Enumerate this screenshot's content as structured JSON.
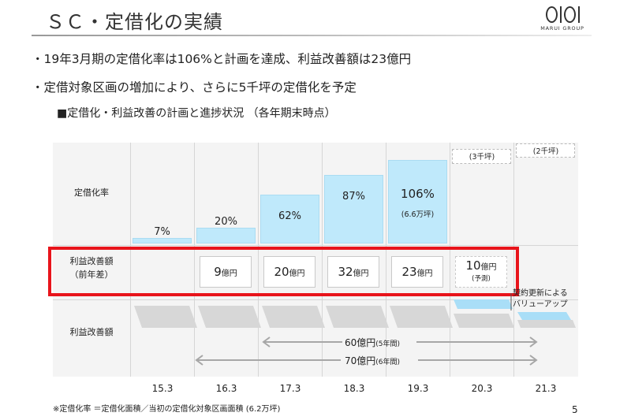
{
  "title": "ＳＣ・定借化の実績",
  "logo": {
    "brand_text": "MARUI GROUP"
  },
  "bullets": [
    "・19年3月期の定借化率は106%と計画を達成、利益改善額は23億円",
    "・定借対象区画の増加により、さらに5千坪の定借化を予定"
  ],
  "subhead": "■定借化・利益改善の計画と進捗状況 （各年期末時点）",
  "row_labels": {
    "rate": "定借化率",
    "improve_line1": "利益改善額",
    "improve_line2": "（前年差）",
    "cumulative": "利益改善額"
  },
  "chart_data": {
    "type": "bar",
    "categories": [
      "15.3",
      "16.3",
      "17.3",
      "18.3",
      "19.3",
      "20.3",
      "21.3"
    ],
    "rate_labels": [
      "7%",
      "20%",
      "62%",
      "87%",
      "106%",
      "",
      ""
    ],
    "rate_values": [
      7,
      20,
      62,
      87,
      106,
      null,
      null
    ],
    "rate_sub_19_3": "(6.6万坪)",
    "plan_notes": {
      "20.3": "(3千坪)",
      "21.3": "(2千坪)"
    },
    "yoy_improvement": [
      {
        "category": "16.3",
        "num": "9",
        "unit": "億円"
      },
      {
        "category": "17.3",
        "num": "20",
        "unit": "億円"
      },
      {
        "category": "18.3",
        "num": "32",
        "unit": "億円"
      },
      {
        "category": "19.3",
        "num": "23",
        "unit": "億円"
      },
      {
        "category": "20.3",
        "num": "10",
        "unit": "億円",
        "note": "(予測)"
      }
    ],
    "arrows": [
      {
        "main": "60億円",
        "sub": "(5年間)"
      },
      {
        "main": "70億円",
        "sub": "(6年間)"
      }
    ],
    "callout": [
      "契約更新による",
      "バリューアップ"
    ]
  },
  "footnote": "※定借化率 ＝定借化面積／当初の定借化対象区画面積 (6.2万坪)",
  "page_number": "5",
  "colors": {
    "bar": "#bfe9fb",
    "highlight": "#e8141b",
    "chart_bg": "#f4f4f4"
  }
}
